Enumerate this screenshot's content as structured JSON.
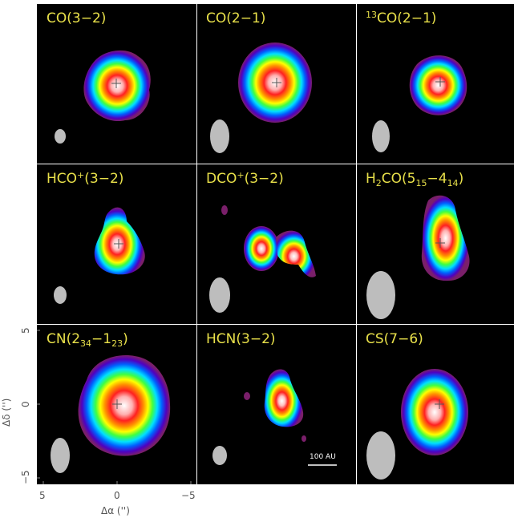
{
  "panels": [
    {
      "label": "CO(3−2)"
    },
    {
      "label": "CO(2−1)"
    },
    {
      "label_sup": "13",
      "label": "CO(2−1)"
    },
    {
      "label_pre": "HCO",
      "label_sup": "+",
      "label": "(3−2)"
    },
    {
      "label_pre": "DCO",
      "label_sup": "+",
      "label": "(3−2)"
    },
    {
      "label_pre": "H",
      "label_sub": "2",
      "label_mid": "CO(5",
      "label_sub2": "15",
      "label_mid2": "−4",
      "label_sub3": "14",
      "label": ")"
    },
    {
      "label_pre": "CN(2",
      "label_sub": "34",
      "label_mid": "−1",
      "label_sub2": "23",
      "label": ")"
    },
    {
      "label": "HCN(3−2)"
    },
    {
      "label": "CS(7−6)"
    }
  ],
  "axes": {
    "x_label": "Δα ('')",
    "y_label": "Δδ ('')",
    "x_ticks": [
      "5",
      "0",
      "−5"
    ],
    "y_ticks": [
      "5",
      "0",
      "−5"
    ]
  },
  "scale_bar": {
    "label": "100 AU"
  },
  "colors": {
    "background": "#000000",
    "label": "#e8e04a"
  }
}
